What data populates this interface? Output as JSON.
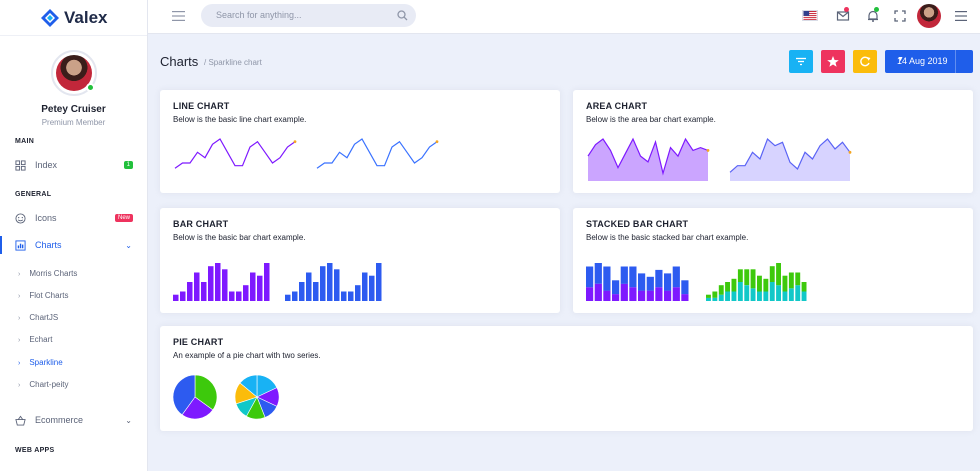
{
  "brand": {
    "name": "Valex"
  },
  "profile": {
    "name": "Petey Cruiser",
    "role": "Premium Member"
  },
  "sidebar": {
    "cat_main": "MAIN",
    "cat_general": "GENERAL",
    "cat_webapps": "WEB APPS",
    "items": [
      {
        "label": "Index",
        "badge": "1"
      },
      {
        "label": "Icons",
        "badge": "New"
      },
      {
        "label": "Charts"
      },
      {
        "label": "Ecommerce"
      }
    ],
    "sub_items": [
      "Morris Charts",
      "Flot Charts",
      "ChartJS",
      "Echart",
      "Sparkline",
      "Chart-peity"
    ]
  },
  "header": {
    "search_placeholder": "Search for anything...",
    "icons": [
      "menu-icon",
      "search-icon",
      "us-flag-icon",
      "mail-icon",
      "bell-icon",
      "fullscreen-icon",
      "user-avatar",
      "menu-icon"
    ]
  },
  "page": {
    "title": "Charts",
    "breadcrumb": "/ Sparkline chart",
    "date": "14 Aug 2019",
    "buttons": [
      {
        "icon": "filter-icon",
        "color": "#18b2f4"
      },
      {
        "icon": "star-icon",
        "color": "#ee335e"
      },
      {
        "icon": "refresh-icon",
        "color": "#fbbc0b"
      }
    ]
  },
  "cards": {
    "line": {
      "title": "LINE CHART",
      "desc": "Below is the basic line chart example."
    },
    "area": {
      "title": "AREA CHART",
      "desc": "Below is the area bar chart example."
    },
    "bar": {
      "title": "BAR CHART",
      "desc": "Below is the basic bar chart example."
    },
    "stacked": {
      "title": "STACKED BAR CHART",
      "desc": "Below is the basic stacked bar chart example."
    },
    "pie": {
      "title": "PIE CHART",
      "desc": "An example of a pie chart with two series."
    }
  },
  "colors": {
    "primary": "#1f5eea",
    "purple": "#7e19ff",
    "cyan": "#11c8c8",
    "green": "#3dc90c",
    "yellow": "#fbbc0b",
    "blue": "#2d5bf0",
    "accent_area": "#cba5ff"
  },
  "chart_data": [
    {
      "type": "line",
      "name": "line-1",
      "values": [
        4,
        6,
        6,
        10,
        8,
        13,
        15,
        10,
        5,
        5,
        12,
        14,
        10,
        6,
        8,
        12,
        14
      ]
    },
    {
      "type": "line",
      "name": "line-2",
      "values": [
        4,
        6,
        6,
        10,
        8,
        13,
        15,
        10,
        5,
        5,
        12,
        14,
        10,
        6,
        8,
        12,
        14
      ]
    },
    {
      "type": "area",
      "name": "area-1",
      "values": [
        8,
        12,
        14,
        10,
        4,
        9,
        14,
        8,
        6,
        13,
        2,
        11,
        8,
        14,
        10,
        11,
        10
      ]
    },
    {
      "type": "area",
      "name": "area-2",
      "values": [
        2,
        4,
        4,
        8,
        6,
        12,
        10,
        11,
        5,
        3,
        8,
        6,
        10,
        12,
        9,
        11,
        8
      ]
    },
    {
      "type": "bar",
      "name": "bar-1",
      "values": [
        2,
        3,
        6,
        9,
        6,
        11,
        12,
        10,
        3,
        3,
        5,
        9,
        8,
        12
      ]
    },
    {
      "type": "bar",
      "name": "bar-2",
      "values": [
        2,
        3,
        6,
        9,
        6,
        11,
        12,
        10,
        3,
        3,
        5,
        9,
        8,
        12
      ]
    },
    {
      "type": "bar",
      "stacked": true,
      "name": "stacked-1",
      "series": [
        {
          "values": [
            4,
            5,
            3,
            2,
            5,
            4,
            3,
            3,
            4,
            3,
            4,
            2
          ]
        },
        {
          "values": [
            6,
            6,
            7,
            4,
            5,
            6,
            5,
            4,
            5,
            5,
            6,
            4
          ]
        }
      ]
    },
    {
      "type": "bar",
      "stacked": true,
      "name": "stacked-2",
      "series": [
        {
          "values": [
            1,
            1,
            2,
            3,
            3,
            6,
            5,
            4,
            3,
            3,
            6,
            5,
            3,
            4,
            5,
            3
          ]
        },
        {
          "values": [
            1,
            2,
            3,
            3,
            4,
            4,
            5,
            6,
            5,
            4,
            5,
            7,
            5,
            5,
            4,
            3
          ]
        }
      ]
    },
    {
      "type": "pie",
      "name": "pie-1",
      "values": [
        35,
        25,
        40
      ],
      "colors": [
        "#3dc90c",
        "#7e19ff",
        "#2d5bf0"
      ]
    },
    {
      "type": "pie",
      "name": "pie-2",
      "values": [
        18,
        14,
        12,
        14,
        12,
        16,
        14
      ],
      "colors": [
        "#18b2f4",
        "#7e19ff",
        "#2d5bf0",
        "#3dc90c",
        "#11c8c8",
        "#fbbc0b",
        "#18b2f4"
      ]
    }
  ]
}
